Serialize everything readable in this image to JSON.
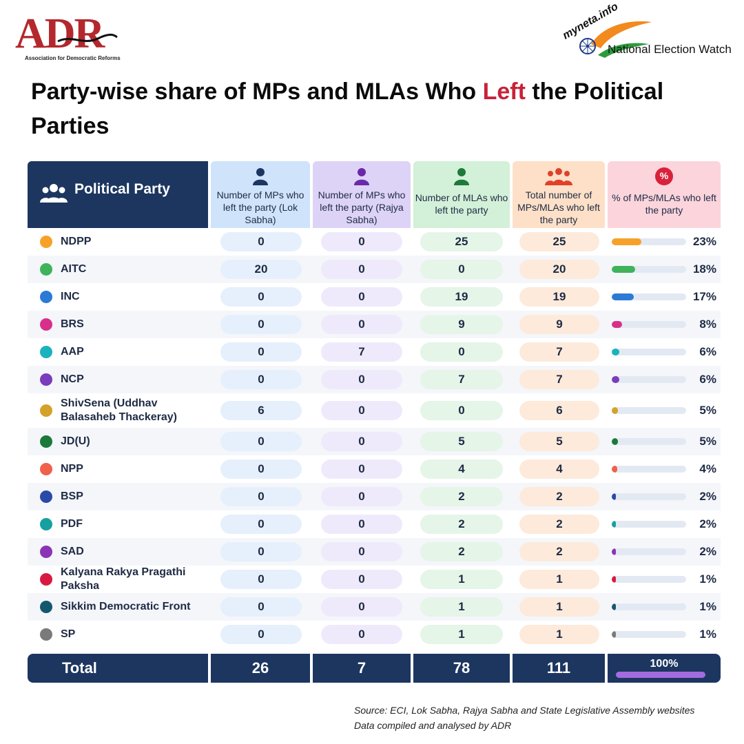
{
  "header": {
    "logo_left": {
      "letters": "ADR",
      "subtitle": "Association for Democratic Reforms"
    },
    "logo_right": {
      "brand": "myneta.info",
      "tagline": "National Election Watch"
    }
  },
  "title": {
    "part1": "Party-wise share of MPs and MLAs Who ",
    "highlight": "Left",
    "part2": " the Political Parties"
  },
  "columns": {
    "party": "Political Party",
    "lok_sabha": "Number of MPs who left the party (Lok Sabha)",
    "rajya_sabha": "Number of MPs who left the party (Rajya Sabha)",
    "mlas": "Number of MLAs who left the party",
    "total": "Total number of MPs/MLAs who left the party",
    "percent": "% of MPs/MLAs who left the party",
    "percent_icon": "%"
  },
  "rows": [
    {
      "party": "NDPP",
      "color": "#f7a128",
      "ls": "0",
      "rs": "0",
      "mla": "25",
      "total": "25",
      "pct": "23%",
      "pct_value": 23
    },
    {
      "party": "AITC",
      "color": "#3fb35a",
      "ls": "20",
      "rs": "0",
      "mla": "0",
      "total": "20",
      "pct": "18%",
      "pct_value": 18
    },
    {
      "party": "INC",
      "color": "#2a7ad6",
      "ls": "0",
      "rs": "0",
      "mla": "19",
      "total": "19",
      "pct": "17%",
      "pct_value": 17
    },
    {
      "party": "BRS",
      "color": "#d8308a",
      "ls": "0",
      "rs": "0",
      "mla": "9",
      "total": "9",
      "pct": "8%",
      "pct_value": 8
    },
    {
      "party": "AAP",
      "color": "#1ab3bd",
      "ls": "0",
      "rs": "7",
      "mla": "0",
      "total": "7",
      "pct": "6%",
      "pct_value": 6
    },
    {
      "party": "NCP",
      "color": "#7b3bbd",
      "ls": "0",
      "rs": "0",
      "mla": "7",
      "total": "7",
      "pct": "6%",
      "pct_value": 6
    },
    {
      "party": "ShivSena (Uddhav Balasaheb Thackeray)",
      "color": "#d4a22a",
      "ls": "6",
      "rs": "0",
      "mla": "0",
      "total": "6",
      "pct": "5%",
      "pct_value": 5
    },
    {
      "party": "JD(U)",
      "color": "#1b7a3a",
      "ls": "0",
      "rs": "0",
      "mla": "5",
      "total": "5",
      "pct": "5%",
      "pct_value": 5
    },
    {
      "party": "NPP",
      "color": "#f0604a",
      "ls": "0",
      "rs": "0",
      "mla": "4",
      "total": "4",
      "pct": "4%",
      "pct_value": 4
    },
    {
      "party": "BSP",
      "color": "#2a4aa8",
      "ls": "0",
      "rs": "0",
      "mla": "2",
      "total": "2",
      "pct": "2%",
      "pct_value": 2
    },
    {
      "party": "PDF",
      "color": "#16a0a0",
      "ls": "0",
      "rs": "0",
      "mla": "2",
      "total": "2",
      "pct": "2%",
      "pct_value": 2
    },
    {
      "party": "SAD",
      "color": "#8a34b5",
      "ls": "0",
      "rs": "0",
      "mla": "2",
      "total": "2",
      "pct": "2%",
      "pct_value": 2
    },
    {
      "party": "Kalyana Rakya Pragathi Paksha",
      "color": "#d81a40",
      "ls": "0",
      "rs": "0",
      "mla": "1",
      "total": "1",
      "pct": "1%",
      "pct_value": 1
    },
    {
      "party": "Sikkim Democratic Front",
      "color": "#14586e",
      "ls": "0",
      "rs": "0",
      "mla": "1",
      "total": "1",
      "pct": "1%",
      "pct_value": 1
    },
    {
      "party": "SP",
      "color": "#7a7a7a",
      "ls": "0",
      "rs": "0",
      "mla": "1",
      "total": "1",
      "pct": "1%",
      "pct_value": 1
    }
  ],
  "totals": {
    "label": "Total",
    "ls": "26",
    "rs": "7",
    "mla": "78",
    "total": "111",
    "pct": "100%"
  },
  "source": {
    "line1": "Source: ECI, Lok Sabha, Rajya Sabha and State Legislative Assembly websites",
    "line2": "Data compiled and analysed by ADR"
  }
}
